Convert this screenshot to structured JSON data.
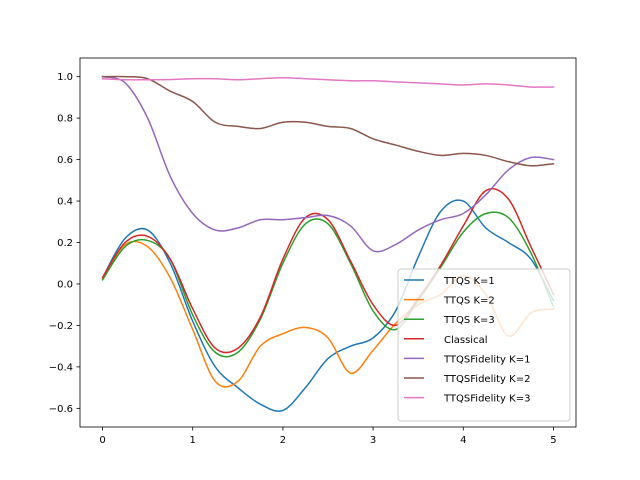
{
  "chart_data": {
    "type": "line",
    "title": "",
    "xlabel": "",
    "ylabel": "",
    "xlim": [
      -0.25,
      5.25
    ],
    "ylim": [
      -0.69,
      1.09
    ],
    "xticks": [
      0,
      1,
      2,
      3,
      4,
      5
    ],
    "xtick_labels": [
      "0",
      "1",
      "2",
      "3",
      "4",
      "5"
    ],
    "yticks": [
      -0.6,
      -0.4,
      -0.2,
      0.0,
      0.2,
      0.4,
      0.6,
      0.8,
      1.0
    ],
    "ytick_labels": [
      "−0.6",
      "−0.4",
      "−0.2",
      "0.0",
      "0.2",
      "0.4",
      "0.6",
      "0.8",
      "1.0"
    ],
    "grid": false,
    "legend_position": "lower-right",
    "x": [
      0,
      0.25,
      0.5,
      0.75,
      1.0,
      1.25,
      1.5,
      1.75,
      2.0,
      2.25,
      2.5,
      2.75,
      3.0,
      3.25,
      3.5,
      3.75,
      4.0,
      4.25,
      4.5,
      4.75,
      5.0
    ],
    "series": [
      {
        "name": "TTQS K=1",
        "color": "#1f77b4",
        "values": [
          0.03,
          0.22,
          0.26,
          0.1,
          -0.18,
          -0.4,
          -0.5,
          -0.58,
          -0.61,
          -0.5,
          -0.36,
          -0.3,
          -0.26,
          -0.13,
          0.13,
          0.35,
          0.4,
          0.27,
          0.2,
          0.12,
          -0.08
        ]
      },
      {
        "name": "TTQS K=2",
        "color": "#ff7f0e",
        "values": [
          0.03,
          0.19,
          0.18,
          0.03,
          -0.22,
          -0.47,
          -0.47,
          -0.3,
          -0.24,
          -0.21,
          -0.26,
          -0.43,
          -0.32,
          -0.19,
          -0.1,
          -0.05,
          0.04,
          -0.05,
          -0.25,
          -0.14,
          -0.12
        ]
      },
      {
        "name": "TTQS K=3",
        "color": "#2ca02c",
        "values": [
          0.02,
          0.18,
          0.21,
          0.12,
          -0.15,
          -0.33,
          -0.33,
          -0.17,
          0.1,
          0.29,
          0.29,
          0.1,
          -0.13,
          -0.22,
          -0.08,
          0.08,
          0.25,
          0.34,
          0.32,
          0.15,
          -0.11
        ]
      },
      {
        "name": "Classical",
        "color": "#d62728",
        "values": [
          0.03,
          0.2,
          0.23,
          0.12,
          -0.12,
          -0.31,
          -0.31,
          -0.16,
          0.12,
          0.32,
          0.31,
          0.11,
          -0.1,
          -0.2,
          -0.07,
          0.09,
          0.28,
          0.45,
          0.41,
          0.18,
          -0.05
        ]
      },
      {
        "name": "TTQSFidelity K=1",
        "color": "#9467bd",
        "values": [
          1.0,
          0.97,
          0.8,
          0.52,
          0.34,
          0.26,
          0.27,
          0.31,
          0.31,
          0.32,
          0.33,
          0.28,
          0.16,
          0.19,
          0.26,
          0.31,
          0.34,
          0.43,
          0.55,
          0.61,
          0.6
        ]
      },
      {
        "name": "TTQSFidelity K=2",
        "color": "#8c564b",
        "values": [
          1.0,
          1.0,
          0.99,
          0.93,
          0.88,
          0.78,
          0.76,
          0.75,
          0.78,
          0.78,
          0.76,
          0.75,
          0.7,
          0.67,
          0.64,
          0.62,
          0.63,
          0.62,
          0.59,
          0.57,
          0.58
        ]
      },
      {
        "name": "TTQSFidelity K=3",
        "color": "#e377c2",
        "values": [
          0.99,
          0.985,
          0.985,
          0.986,
          0.99,
          0.99,
          0.985,
          0.99,
          0.995,
          0.99,
          0.985,
          0.98,
          0.98,
          0.975,
          0.97,
          0.965,
          0.96,
          0.965,
          0.96,
          0.95,
          0.95
        ]
      }
    ]
  }
}
